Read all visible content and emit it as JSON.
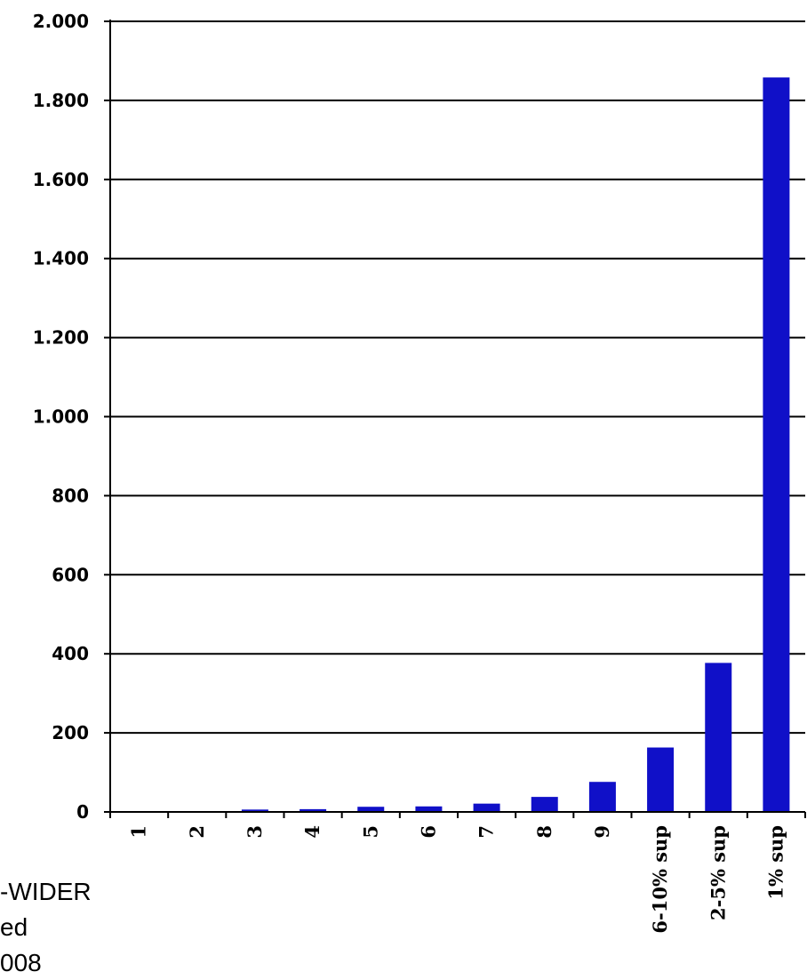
{
  "chart_data": {
    "type": "bar",
    "categories": [
      "1",
      "2",
      "3",
      "4",
      "5",
      "6",
      "7",
      "8",
      "9",
      "6-10% sup",
      "2-5% sup",
      "1% sup"
    ],
    "values": [
      1,
      2,
      6,
      7,
      13,
      14,
      21,
      38,
      76,
      163,
      377,
      1858
    ],
    "ylim": [
      0,
      2000
    ],
    "yticks": [
      0,
      200,
      400,
      600,
      800,
      1000,
      1200,
      1400,
      1600,
      1800,
      2000
    ],
    "ytick_labels": [
      "0",
      "200",
      "400",
      "600",
      "800",
      "1.000",
      "1.200",
      "1.400",
      "1.600",
      "1.800",
      "2.000"
    ],
    "bar_color": "#1010c8",
    "grid": true,
    "title": "",
    "xlabel": "",
    "ylabel": ""
  },
  "footnote": {
    "lines": [
      "-WIDER",
      "ed",
      "008"
    ]
  }
}
